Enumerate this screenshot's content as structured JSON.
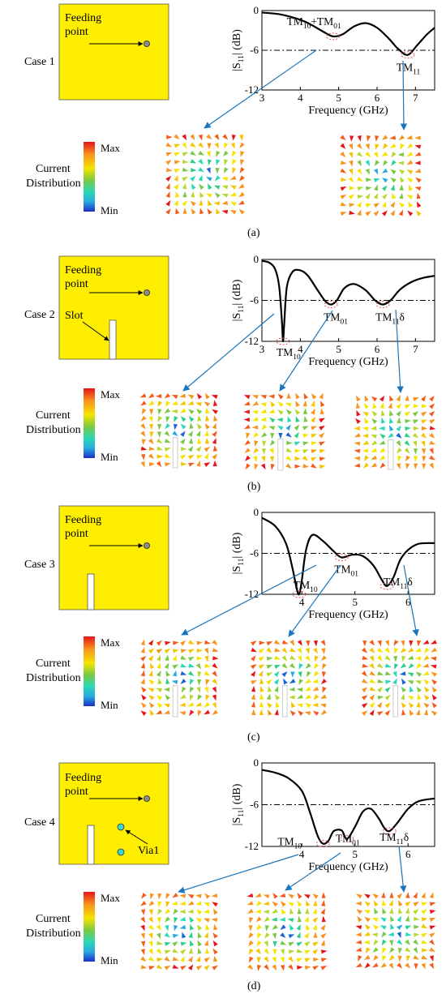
{
  "legend": {
    "max": "Max",
    "min": "Min",
    "label_line1": "Current",
    "label_line2": "Distribution"
  },
  "feed": {
    "line1": "Feeding",
    "line2": "point"
  },
  "colors": {
    "patch": "#ffee00",
    "feed": "#8a8a8a",
    "via": "#3ad6d6",
    "curve": "#000000",
    "arrow_line": "#1a75bc",
    "marker": "#e05050"
  },
  "panels": [
    {
      "case_label": "Case 1",
      "caption": "(a)",
      "slot_label": "",
      "via_label": "",
      "chart": {
        "type": "line",
        "xlabel": "Frequency (GHz)",
        "ylabel": [
          "|S",
          "11",
          "| (dB)"
        ],
        "xlim": [
          3,
          7.5
        ],
        "ylim": [
          -12,
          0
        ],
        "xticks": [
          "3",
          "4",
          "5",
          "6",
          "7"
        ],
        "yticks": [
          "0",
          "-6",
          "-12"
        ],
        "reference_level": -6,
        "modes": [
          {
            "parts": [
              "TM",
              "10",
              "+TM",
              "01"
            ],
            "x": 4.85,
            "y": -3.9
          },
          {
            "parts": [
              "TM",
              "11"
            ],
            "x": 6.8,
            "y": -6.7
          }
        ]
      }
    },
    {
      "case_label": "Case 2",
      "caption": "(b)",
      "slot_label": "Slot",
      "via_label": "",
      "chart": {
        "type": "line",
        "xlabel": "Frequency (GHz)",
        "ylabel": [
          "|S",
          "11",
          "| (dB)"
        ],
        "xlim": [
          3,
          7.5
        ],
        "ylim": [
          -12,
          0
        ],
        "xticks": [
          "3",
          "4",
          "5",
          "6",
          "7"
        ],
        "yticks": [
          "0",
          "-6",
          "-12"
        ],
        "reference_level": -6,
        "modes": [
          {
            "parts": [
              "TM",
              "10"
            ],
            "x": 3.55,
            "y": -12
          },
          {
            "parts": [
              "TM",
              "01"
            ],
            "x": 4.8,
            "y": -6.6
          },
          {
            "parts": [
              "TM",
              "11",
              "δ"
            ],
            "x": 6.15,
            "y": -6.6
          }
        ]
      }
    },
    {
      "case_label": "Case 3",
      "caption": "(c)",
      "slot_label": "",
      "via_label": "",
      "chart": {
        "type": "line",
        "xlabel": "Frequency (GHz)",
        "ylabel": [
          "|S",
          "11",
          "| (dB)"
        ],
        "xlim": [
          3.25,
          6.5
        ],
        "ylim": [
          -12,
          0
        ],
        "xticks": [
          "4",
          "5",
          "6"
        ],
        "yticks": [
          "0",
          "-6",
          "-12"
        ],
        "reference_level": -6,
        "modes": [
          {
            "parts": [
              "TM",
              "10"
            ],
            "x": 3.95,
            "y": -12
          },
          {
            "parts": [
              "TM",
              "01"
            ],
            "x": 4.75,
            "y": -6.6
          },
          {
            "parts": [
              "TM",
              "11",
              "δ"
            ],
            "x": 5.6,
            "y": -10.8
          }
        ]
      }
    },
    {
      "case_label": "Case 4",
      "caption": "(d)",
      "slot_label": "",
      "via_label": "Via1",
      "chart": {
        "type": "line",
        "xlabel": "Frequency (GHz)",
        "ylabel": [
          "|S",
          "11",
          "| (dB)"
        ],
        "xlim": [
          3.25,
          6.5
        ],
        "ylim": [
          -12,
          0
        ],
        "xticks": [
          "4",
          "5",
          "6"
        ],
        "yticks": [
          "0",
          "-6",
          "-12"
        ],
        "reference_level": -6,
        "modes": [
          {
            "parts": [
              "TM",
              "10"
            ],
            "x": 4.4,
            "y": -11.6
          },
          {
            "parts": [
              "TM",
              "01"
            ],
            "x": 4.85,
            "y": -10.9
          },
          {
            "parts": [
              "TM",
              "11",
              "δ"
            ],
            "x": 5.65,
            "y": -9.8
          }
        ]
      }
    }
  ],
  "chart_data": [
    {
      "type": "line",
      "title": "",
      "xlabel": "Frequency (GHz)",
      "ylabel": "|S11| (dB)",
      "xlim": [
        3,
        7.5
      ],
      "ylim": [
        -12,
        0
      ],
      "grid": false,
      "series": [
        {
          "x": [
            3,
            3.5,
            4,
            4.3,
            4.6,
            4.85,
            5.1,
            5.4,
            5.7,
            6.0,
            6.3,
            6.55,
            6.8,
            7.05,
            7.3,
            7.5
          ],
          "y": [
            -0.3,
            -0.6,
            -1.4,
            -2.2,
            -3.2,
            -3.9,
            -3.6,
            -2.4,
            -1.9,
            -2.6,
            -4.2,
            -5.8,
            -6.7,
            -5.2,
            -3.6,
            -2.6
          ]
        }
      ]
    },
    {
      "type": "line",
      "title": "",
      "xlabel": "Frequency (GHz)",
      "ylabel": "|S11| (dB)",
      "xlim": [
        3,
        7.5
      ],
      "ylim": [
        -12,
        0
      ],
      "grid": false,
      "series": [
        {
          "x": [
            3,
            3.2,
            3.35,
            3.45,
            3.52,
            3.55,
            3.58,
            3.65,
            3.8,
            4.0,
            4.2,
            4.45,
            4.65,
            4.8,
            4.95,
            5.15,
            5.4,
            5.7,
            5.95,
            6.15,
            6.35,
            6.6,
            6.9,
            7.2,
            7.5
          ],
          "y": [
            -0.2,
            -0.5,
            -1.5,
            -4.0,
            -9.0,
            -12,
            -9.5,
            -4.0,
            -1.8,
            -1.6,
            -2.4,
            -4.5,
            -6.1,
            -6.6,
            -6.0,
            -4.2,
            -3.6,
            -4.5,
            -6.0,
            -6.6,
            -6.0,
            -4.4,
            -3.3,
            -2.7,
            -2.4
          ]
        }
      ]
    },
    {
      "type": "line",
      "title": "",
      "xlabel": "Frequency (GHz)",
      "ylabel": "|S11| (dB)",
      "xlim": [
        3.25,
        6.5
      ],
      "ylim": [
        -12,
        0
      ],
      "grid": false,
      "series": [
        {
          "x": [
            3.25,
            3.5,
            3.7,
            3.82,
            3.9,
            3.95,
            4.0,
            4.08,
            4.2,
            4.4,
            4.6,
            4.75,
            4.95,
            5.15,
            5.35,
            5.5,
            5.6,
            5.72,
            5.85,
            6.0,
            6.2,
            6.5
          ],
          "y": [
            -0.8,
            -2.0,
            -4.5,
            -8.0,
            -11.0,
            -12,
            -10.0,
            -5.5,
            -3.3,
            -4.2,
            -5.7,
            -6.6,
            -6.2,
            -6.4,
            -7.8,
            -9.8,
            -10.8,
            -9.6,
            -7.0,
            -5.5,
            -4.6,
            -4.5
          ]
        }
      ]
    },
    {
      "type": "line",
      "title": "",
      "xlabel": "Frequency (GHz)",
      "ylabel": "|S11| (dB)",
      "xlim": [
        3.25,
        6.5
      ],
      "ylim": [
        -12,
        0
      ],
      "grid": false,
      "series": [
        {
          "x": [
            3.25,
            3.5,
            3.75,
            4.0,
            4.15,
            4.3,
            4.4,
            4.5,
            4.6,
            4.75,
            4.85,
            5.0,
            5.15,
            5.3,
            5.45,
            5.55,
            5.65,
            5.8,
            6.0,
            6.2,
            6.5
          ],
          "y": [
            -1.0,
            -1.4,
            -2.2,
            -4.0,
            -7.0,
            -10.5,
            -11.6,
            -11.2,
            -9.8,
            -9.7,
            -10.9,
            -9.2,
            -7.0,
            -6.6,
            -8.0,
            -9.3,
            -9.8,
            -8.6,
            -6.6,
            -5.5,
            -5.1
          ]
        }
      ]
    }
  ]
}
